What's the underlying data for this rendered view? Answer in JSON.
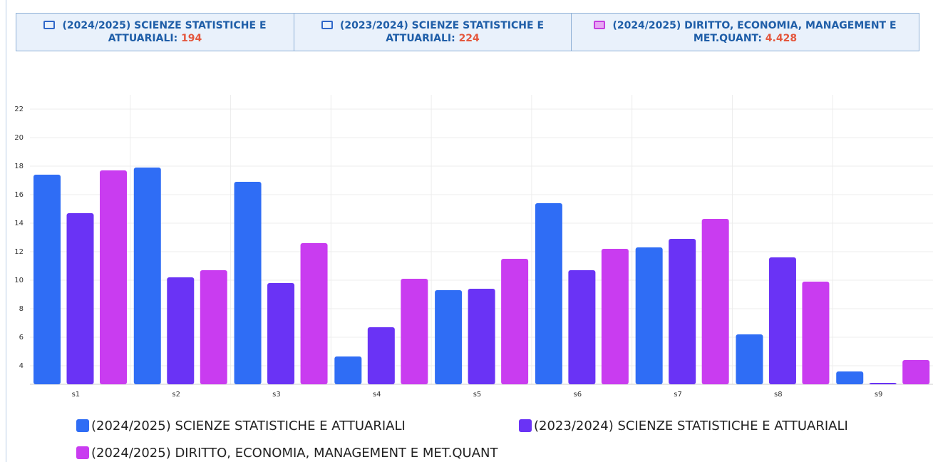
{
  "header": {
    "cards": [
      {
        "label": "(2024/2025) SCIENZE STATISTICHE E ATTUARIALI:",
        "value": "194"
      },
      {
        "label": "(2023/2024) SCIENZE STATISTICHE E ATTUARIALI:",
        "value": "224"
      },
      {
        "label": "(2024/2025) DIRITTO, ECONOMIA, MANAGEMENT E MET.QUANT:",
        "value": "4.428"
      }
    ]
  },
  "chart_data": {
    "type": "bar",
    "categories": [
      "s1",
      "s2",
      "s3",
      "s4",
      "s5",
      "s6",
      "s7",
      "s8",
      "s9"
    ],
    "series": [
      {
        "name": "(2024/2025) SCIENZE STATISTICHE E ATTUARIALI",
        "color": "#2f6df5",
        "values": [
          17.4,
          17.9,
          16.9,
          4.65,
          9.3,
          15.4,
          12.3,
          6.2,
          3.6
        ]
      },
      {
        "name": "(2023/2024) SCIENZE STATISTICHE E ATTUARIALI",
        "color": "#6a33f5",
        "values": [
          14.7,
          10.2,
          9.8,
          6.7,
          9.4,
          10.7,
          12.9,
          11.6,
          2.8
        ]
      },
      {
        "name": "(2024/2025) DIRITTO, ECONOMIA, MANAGEMENT E MET.QUANT",
        "color": "#c93cf0",
        "values": [
          17.7,
          10.7,
          12.6,
          10.1,
          11.5,
          12.2,
          14.3,
          9.9,
          4.4
        ]
      }
    ],
    "ylim": [
      2.7,
      23
    ],
    "yticks": [
      4,
      6,
      8,
      10,
      12,
      14,
      16,
      18,
      20,
      22
    ],
    "grid": true
  }
}
